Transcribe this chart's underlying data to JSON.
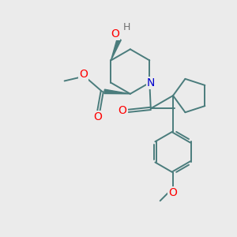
{
  "bg_color": "#ebebeb",
  "bond_color": "#4a7c7c",
  "bond_width": 1.4,
  "atom_colors": {
    "O": "#ff0000",
    "N": "#0000cd",
    "H": "#707070",
    "C": "#4a7c7c"
  }
}
